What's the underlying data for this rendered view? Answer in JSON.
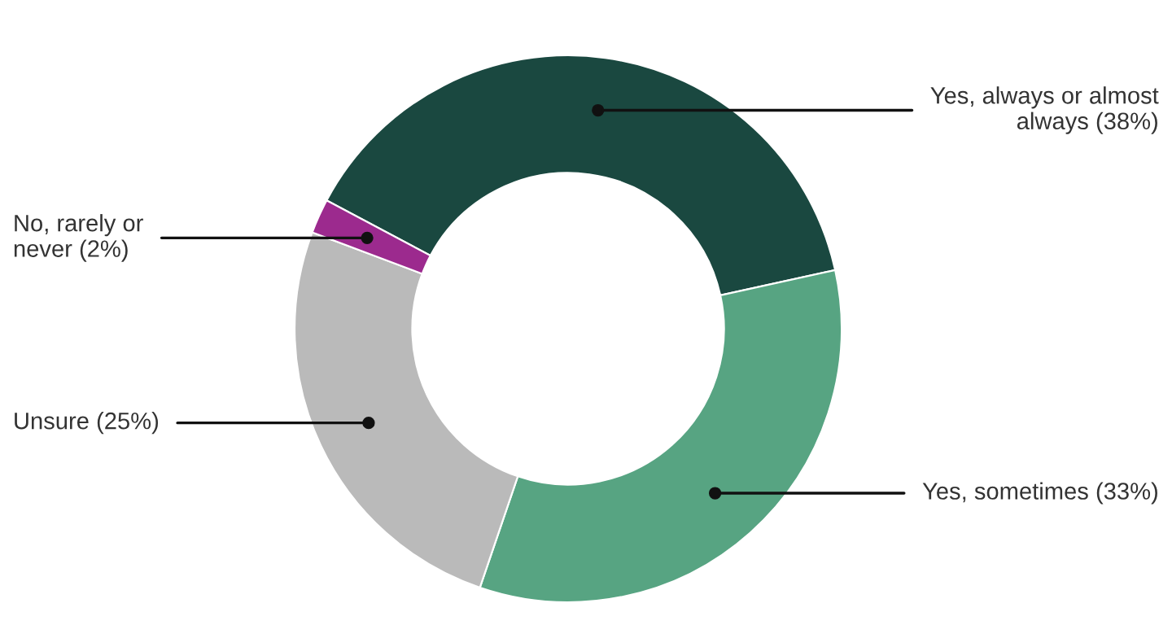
{
  "chart_data": {
    "type": "donut",
    "categories": [
      "Yes, always or almost\nalways (38%)",
      "Yes, sometimes (33%)",
      "Unsure (25%)",
      "No, rarely or\nnever (2%)"
    ],
    "values": [
      38,
      33,
      25,
      2
    ],
    "colors": [
      "#1a4840",
      "#57a482",
      "#bababa",
      "#9c2a8e"
    ],
    "legend": false
  }
}
